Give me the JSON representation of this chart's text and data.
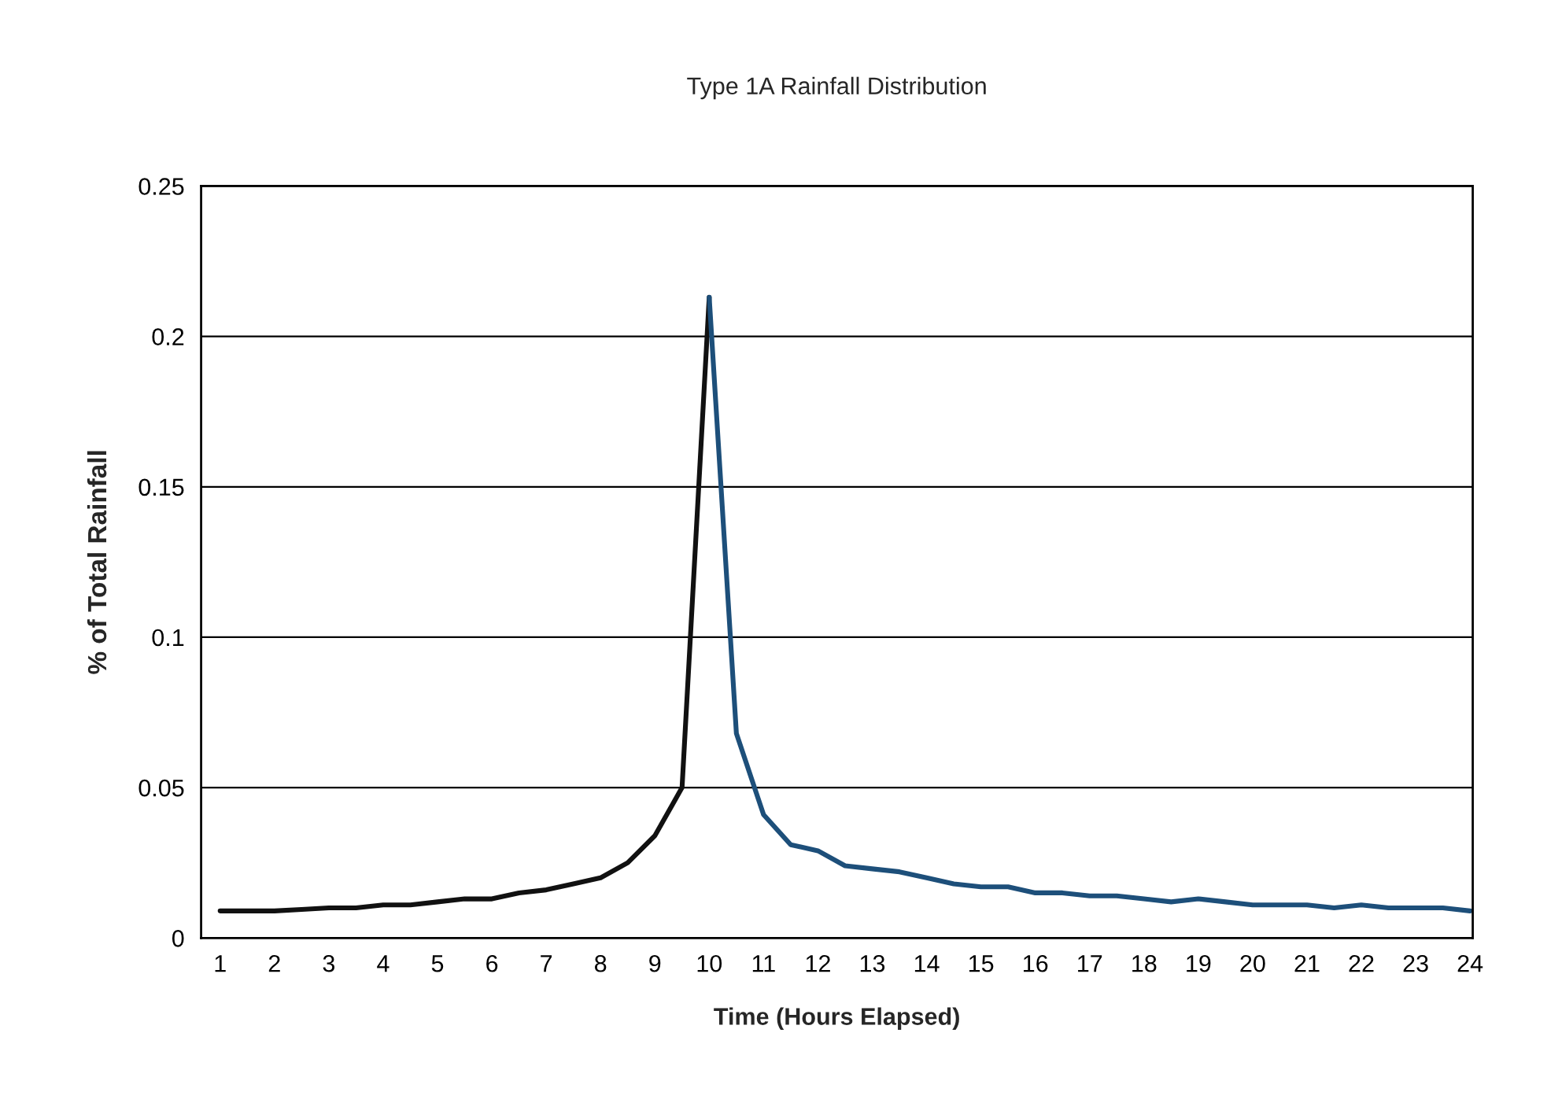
{
  "chart_data": {
    "type": "line",
    "title": "Type 1A Rainfall Distribution",
    "xlabel": "Time (Hours Elapsed)",
    "ylabel": "% of Total Rainfall",
    "series": [
      {
        "color": "#111111",
        "x": [
          1,
          1.5,
          2,
          2.5,
          3,
          3.5,
          4,
          4.5,
          5,
          5.5,
          6,
          6.5,
          7,
          7.5,
          8,
          8.5,
          9,
          9.5,
          10
        ],
        "values": [
          0.009,
          0.009,
          0.009,
          0.0095,
          0.01,
          0.01,
          0.011,
          0.011,
          0.012,
          0.013,
          0.013,
          0.015,
          0.016,
          0.018,
          0.02,
          0.025,
          0.034,
          0.05,
          0.213
        ]
      },
      {
        "color": "#1d4f7a",
        "x": [
          10,
          10.5,
          11,
          11.5,
          12,
          12.5,
          13,
          13.5,
          14,
          14.5,
          15,
          15.5,
          16,
          16.5,
          17,
          17.5,
          18,
          18.5,
          19,
          19.5,
          20,
          20.5,
          21,
          21.5,
          22,
          22.5,
          23,
          23.5,
          24
        ],
        "values": [
          0.213,
          0.068,
          0.041,
          0.031,
          0.029,
          0.024,
          0.023,
          0.022,
          0.02,
          0.018,
          0.017,
          0.017,
          0.015,
          0.015,
          0.014,
          0.014,
          0.013,
          0.012,
          0.013,
          0.012,
          0.011,
          0.011,
          0.011,
          0.01,
          0.011,
          0.01,
          0.01,
          0.01,
          0.009
        ]
      }
    ],
    "xlim": [
      0.65,
      24.05
    ],
    "xticks": [
      1,
      2,
      3,
      4,
      5,
      6,
      7,
      8,
      9,
      10,
      11,
      12,
      13,
      14,
      15,
      16,
      17,
      18,
      19,
      20,
      21,
      22,
      23,
      24
    ],
    "ylim": [
      0,
      0.25
    ],
    "yticks": [
      0,
      0.05,
      0.1,
      0.15,
      0.2,
      0.25
    ],
    "grid": "y",
    "marker": "none",
    "line_style": "solid"
  }
}
